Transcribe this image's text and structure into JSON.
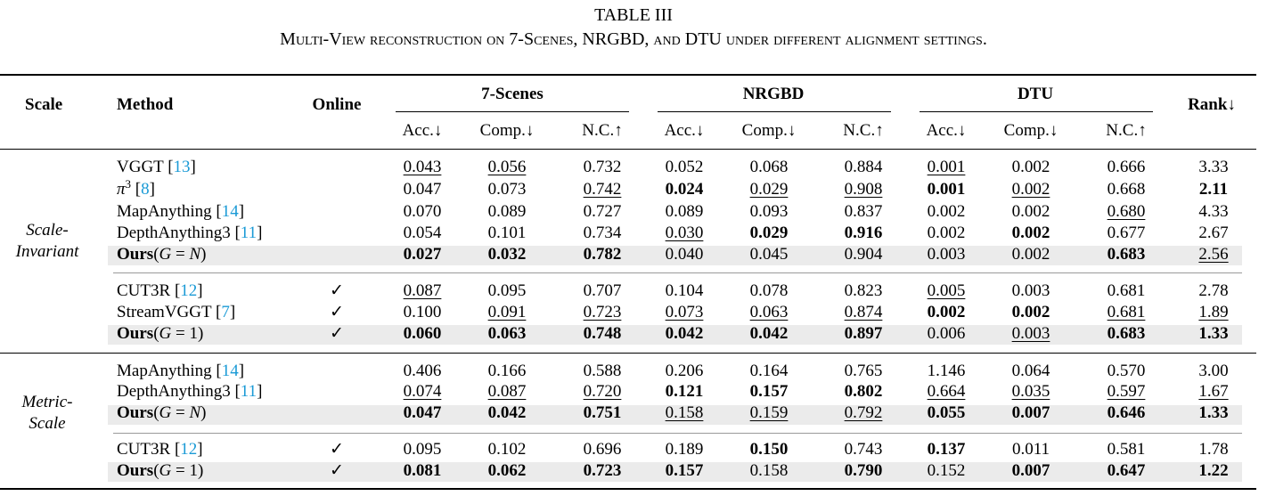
{
  "caption": {
    "title": "TABLE III",
    "subtitle": "Multi-View reconstruction on 7-Scenes, NRGBD, and DTU under different alignment settings."
  },
  "header": {
    "scale": "Scale",
    "method": "Method",
    "online": "Online",
    "groups": [
      "7-Scenes",
      "NRGBD",
      "DTU"
    ],
    "rank": "Rank↓",
    "metrics": [
      "Acc.↓",
      "Comp.↓",
      "N.C.↑",
      "Acc.↓",
      "Comp.↓",
      "N.C.↑",
      "Acc.↓",
      "Comp.↓",
      "N.C.↑"
    ]
  },
  "scale_labels": {
    "invariant_1": "Scale-",
    "invariant_2": "Invariant",
    "metric_1": "Metric-",
    "metric_2": "Scale"
  },
  "rows": [
    {
      "method": "VGGT",
      "cite": "13",
      "online": "",
      "shaded": false,
      "vals": [
        "0.043",
        "0.056",
        "0.732",
        "0.052",
        "0.068",
        "0.884",
        "0.001",
        "0.002",
        "0.666",
        "3.33"
      ],
      "style": [
        "u",
        "u",
        "",
        "",
        "",
        "",
        "u",
        "",
        "",
        ""
      ]
    },
    {
      "method": "π3",
      "cite": "8",
      "online": "",
      "shaded": false,
      "vals": [
        "0.047",
        "0.073",
        "0.742",
        "0.024",
        "0.029",
        "0.908",
        "0.001",
        "0.002",
        "0.668",
        "2.11"
      ],
      "style": [
        "",
        "",
        "u",
        "b",
        "u",
        "u",
        "b",
        "u",
        "",
        "b"
      ]
    },
    {
      "method": "MapAnything",
      "cite": "14",
      "online": "",
      "shaded": false,
      "vals": [
        "0.070",
        "0.089",
        "0.727",
        "0.089",
        "0.093",
        "0.837",
        "0.002",
        "0.002",
        "0.680",
        "4.33"
      ],
      "style": [
        "",
        "",
        "",
        "",
        "",
        "",
        "",
        "",
        "u",
        ""
      ]
    },
    {
      "method": "DepthAnything3",
      "cite": "11",
      "online": "",
      "shaded": false,
      "vals": [
        "0.054",
        "0.101",
        "0.734",
        "0.030",
        "0.029",
        "0.916",
        "0.002",
        "0.002",
        "0.677",
        "2.67"
      ],
      "style": [
        "",
        "",
        "",
        "u",
        "b",
        "b",
        "",
        "b",
        "",
        ""
      ]
    },
    {
      "method": "Ours",
      "suffix": "(G = N)",
      "cite": "",
      "online": "",
      "shaded": true,
      "vals": [
        "0.027",
        "0.032",
        "0.782",
        "0.040",
        "0.045",
        "0.904",
        "0.003",
        "0.002",
        "0.683",
        "2.56"
      ],
      "style": [
        "b",
        "b",
        "b",
        "",
        "",
        "",
        "",
        "",
        "b",
        "u"
      ]
    },
    {
      "method": "CUT3R",
      "cite": "12",
      "online": "✓",
      "shaded": false,
      "vals": [
        "0.087",
        "0.095",
        "0.707",
        "0.104",
        "0.078",
        "0.823",
        "0.005",
        "0.003",
        "0.681",
        "2.78"
      ],
      "style": [
        "u",
        "",
        "",
        "",
        "",
        "",
        "u",
        "",
        "",
        ""
      ]
    },
    {
      "method": "StreamVGGT",
      "cite": "7",
      "online": "✓",
      "shaded": false,
      "vals": [
        "0.100",
        "0.091",
        "0.723",
        "0.073",
        "0.063",
        "0.874",
        "0.002",
        "0.002",
        "0.681",
        "1.89"
      ],
      "style": [
        "",
        "u",
        "u",
        "u",
        "u",
        "u",
        "b",
        "b",
        "u",
        "u"
      ]
    },
    {
      "method": "Ours",
      "suffix": "(G = 1)",
      "cite": "",
      "online": "✓",
      "shaded": true,
      "vals": [
        "0.060",
        "0.063",
        "0.748",
        "0.042",
        "0.042",
        "0.897",
        "0.006",
        "0.003",
        "0.683",
        "1.33"
      ],
      "style": [
        "b",
        "b",
        "b",
        "b",
        "b",
        "b",
        "",
        "u",
        "b",
        "b"
      ]
    },
    {
      "method": "MapAnything",
      "cite": "14",
      "online": "",
      "shaded": false,
      "vals": [
        "0.406",
        "0.166",
        "0.588",
        "0.206",
        "0.164",
        "0.765",
        "1.146",
        "0.064",
        "0.570",
        "3.00"
      ],
      "style": [
        "",
        "",
        "",
        "",
        "",
        "",
        "",
        "",
        "",
        ""
      ]
    },
    {
      "method": "DepthAnything3",
      "cite": "11",
      "online": "",
      "shaded": false,
      "vals": [
        "0.074",
        "0.087",
        "0.720",
        "0.121",
        "0.157",
        "0.802",
        "0.664",
        "0.035",
        "0.597",
        "1.67"
      ],
      "style": [
        "u",
        "u",
        "u",
        "b",
        "b",
        "b",
        "u",
        "u",
        "u",
        "u"
      ]
    },
    {
      "method": "Ours",
      "suffix": "(G = N)",
      "cite": "",
      "online": "",
      "shaded": true,
      "vals": [
        "0.047",
        "0.042",
        "0.751",
        "0.158",
        "0.159",
        "0.792",
        "0.055",
        "0.007",
        "0.646",
        "1.33"
      ],
      "style": [
        "b",
        "b",
        "b",
        "u",
        "u",
        "u",
        "b",
        "b",
        "b",
        "b"
      ]
    },
    {
      "method": "CUT3R",
      "cite": "12",
      "online": "✓",
      "shaded": false,
      "vals": [
        "0.095",
        "0.102",
        "0.696",
        "0.189",
        "0.150",
        "0.743",
        "0.137",
        "0.011",
        "0.581",
        "1.78"
      ],
      "style": [
        "",
        "",
        "",
        "",
        "b",
        "",
        "b",
        "",
        "",
        ""
      ]
    },
    {
      "method": "Ours",
      "suffix": "(G = 1)",
      "cite": "",
      "online": "✓",
      "shaded": true,
      "vals": [
        "0.081",
        "0.062",
        "0.723",
        "0.157",
        "0.158",
        "0.790",
        "0.152",
        "0.007",
        "0.647",
        "1.22"
      ],
      "style": [
        "b",
        "b",
        "b",
        "b",
        "",
        "b",
        "",
        "b",
        "b",
        "b"
      ]
    }
  ]
}
